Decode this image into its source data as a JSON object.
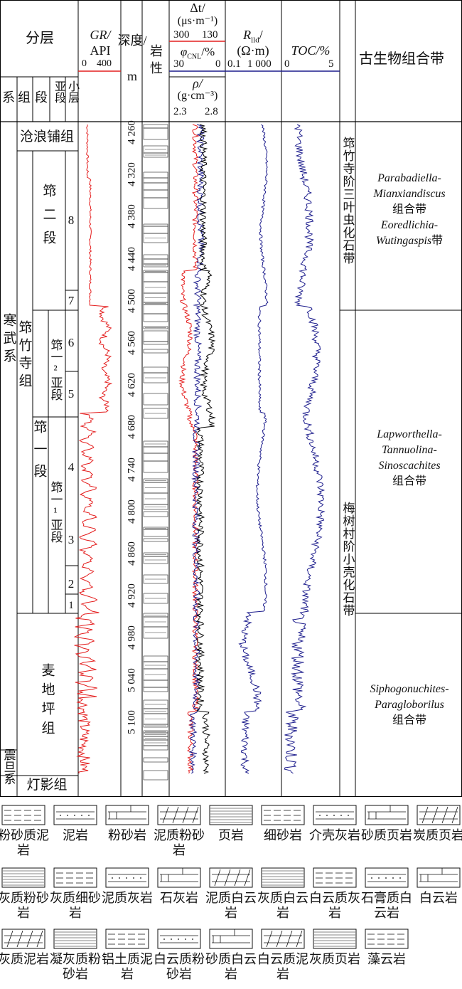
{
  "header": {
    "stratification": "分层",
    "system": "系",
    "formation": "组",
    "member": "段",
    "submember": "亚段",
    "bed": "小层",
    "gr_title": "GR/",
    "gr_unit": "API",
    "gr_scale_min": "0",
    "gr_scale_max": "400",
    "depth_title": "深度/",
    "depth_unit": "m",
    "lithology": "岩性",
    "dt_title": "Δt/",
    "dt_unit": "(μs·m⁻¹)",
    "dt_scale_left": "300",
    "dt_scale_right": "130",
    "cnl_title": "φ",
    "cnl_sub": "CNL",
    "cnl_unit": "/%",
    "cnl_scale_left": "30",
    "cnl_scale_right": "0",
    "rho_title": "ρ/",
    "rho_unit": "(g·cm⁻³)",
    "rho_scale_left": "2.3",
    "rho_scale_right": "2.8",
    "rlld_title": "R",
    "rlld_sub": "lld",
    "rlld_tail": "/",
    "rlld_unit": "(Ω·m)",
    "rlld_scale_min": "0.1",
    "rlld_scale_max": "1 000",
    "toc_title": "TOC/%",
    "toc_scale_min": "0",
    "toc_scale_max": "5",
    "fossil_title": "古生物组合带"
  },
  "colors": {
    "gr": "#e41e1e",
    "dt": "#e41e1e",
    "cnl": "#1c1c8c",
    "rho": "#000000",
    "rlld": "#1c1c8c",
    "toc": "#1c1c8c"
  },
  "strata": {
    "system_cambrian": "寒武系",
    "system_sinian": "震旦系",
    "formation_canglangpu": "沧浪铺组",
    "formation_qiongzhusi": "筇竹寺组",
    "formation_maidiping": "麦地坪组",
    "formation_dengying": "灯影组",
    "member_2": "筇二段",
    "member_1": "筇一段",
    "submember_2": "筇一²亚段",
    "submember_1": "筇一¹亚段",
    "beds": [
      "8",
      "7",
      "6",
      "5",
      "4",
      "3",
      "2",
      "1"
    ]
  },
  "depth_ticks": [
    "4 260",
    "4 320",
    "4 380",
    "4 440",
    "4 500",
    "4 560",
    "4 620",
    "4 680",
    "4 740",
    "4 800",
    "4 860",
    "4 920",
    "4 980",
    "5 040",
    "5 100"
  ],
  "fossils": {
    "stage_upper": "筇竹寺阶三叶虫化石带",
    "stage_lower": "梅树村阶小壳化石带",
    "zone1_l1": "Parabadiella-",
    "zone1_l2": "Mianxiandiscus",
    "zone1_l3": "组合带",
    "zone1_l4": "Eoredlichia-",
    "zone1_l5": "Wutingaspis",
    "zone1_l5b": "带",
    "zone2_l1": "Lapworthella-",
    "zone2_l2": "Tannuolina-",
    "zone2_l3": "Sinoscachites",
    "zone2_l4": "组合带",
    "zone3_l1": "Siphogonuchites-",
    "zone3_l2": "Paragloborilus",
    "zone3_l3": "组合带"
  },
  "legend": [
    {
      "icon": "silty-mudstone-icon",
      "label": "粉砂质泥岩"
    },
    {
      "icon": "mudstone-icon",
      "label": "泥岩"
    },
    {
      "icon": "siltstone-icon",
      "label": "粉砂岩"
    },
    {
      "icon": "argillaceous-siltstone-icon",
      "label": "泥质粉砂岩"
    },
    {
      "icon": "shale-icon",
      "label": "页岩"
    },
    {
      "icon": "fine-sandstone-icon",
      "label": "细砂岩"
    },
    {
      "icon": "shell-limestone-icon",
      "label": "介壳灰岩"
    },
    {
      "icon": "sandy-shale-icon",
      "label": "砂质页岩"
    },
    {
      "icon": "carbonaceous-shale-icon",
      "label": "炭质页岩"
    },
    {
      "icon": "calcareous-siltstone-icon",
      "label": "灰质粉砂岩"
    },
    {
      "icon": "calcareous-fine-sandstone-icon",
      "label": "灰质细砂岩"
    },
    {
      "icon": "argillaceous-limestone-icon",
      "label": "泥质灰岩"
    },
    {
      "icon": "limestone-icon",
      "label": "石灰岩"
    },
    {
      "icon": "argillaceous-dolomite-icon",
      "label": "泥质白云岩"
    },
    {
      "icon": "calcareous-dolomite-icon",
      "label": "灰质白云岩"
    },
    {
      "icon": "dolomitic-limestone-icon",
      "label": "白云质灰岩"
    },
    {
      "icon": "gypsiferous-dolomite-icon",
      "label": "石膏质白云岩"
    },
    {
      "icon": "dolomite-icon",
      "label": "白云岩"
    },
    {
      "icon": "calcareous-mudstone-icon",
      "label": "灰质泥岩"
    },
    {
      "icon": "tuffaceous-calcareous-siltstone-icon",
      "label": "凝灰质粉砂岩"
    },
    {
      "icon": "bauxitic-mudstone-icon",
      "label": "铝土质泥岩"
    },
    {
      "icon": "dolomitic-siltstone-icon",
      "label": "白云质粉砂岩"
    },
    {
      "icon": "sandy-dolomite-icon",
      "label": "砂质白云岩"
    },
    {
      "icon": "dolomitic-mudstone-icon",
      "label": "白云质泥岩"
    },
    {
      "icon": "calcareous-shale-icon",
      "label": "灰质页岩"
    },
    {
      "icon": "algal-dolomite-icon",
      "label": "藻云岩"
    }
  ]
}
